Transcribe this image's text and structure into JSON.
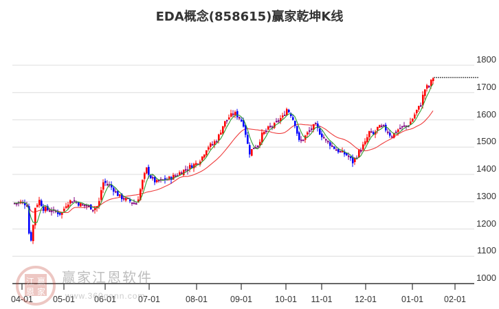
{
  "title": "EDA概念(858615)赢家乾坤K线",
  "watermark": {
    "brand": "赢家江恩软件",
    "url": "www.360gann.com",
    "seal_chars": [
      "江",
      "赢",
      "恩",
      "家"
    ]
  },
  "colors": {
    "up": "#ff0000",
    "down": "#0000ff",
    "neutral": "#800080",
    "ma_short": "#2e9b2e",
    "ma_long": "#ee3b3b",
    "grid": "#e3e3e3",
    "axis": "#333333",
    "last_price_line": "#000000"
  },
  "chart_data": {
    "type": "candlestick",
    "title": "EDA概念(858615)赢家乾坤K线",
    "xlabel": "",
    "ylabel": "",
    "ylim": [
      1000,
      1800
    ],
    "y_ticks": [
      1000,
      1100,
      1200,
      1300,
      1400,
      1500,
      1600,
      1700,
      1800
    ],
    "x_ticks": [
      "04-01",
      "05-01",
      "06-01",
      "07-01",
      "08-01",
      "09-01",
      "10-01",
      "11-01",
      "12-01",
      "01-01",
      "02-01"
    ],
    "grid": "horizontal",
    "y_axis_position": "right",
    "series": [
      {
        "name": "K线",
        "kind": "ohlc"
      },
      {
        "name": "短期均线",
        "kind": "line",
        "color": "green"
      },
      {
        "name": "长期均线",
        "kind": "line",
        "color": "red"
      }
    ],
    "last_price_line": 1755,
    "approx_ohlc_segments": [
      {
        "period": "03-25 ~ 04-08",
        "range": [
          1280,
          1320
        ],
        "trend": "flat"
      },
      {
        "period": "04-08 ~ 04-15",
        "range": [
          1115,
          1290
        ],
        "trend": "sharp drop then recovery"
      },
      {
        "period": "04-15 ~ 05-31",
        "range": [
          1245,
          1320
        ],
        "trend": "sideways"
      },
      {
        "period": "06-01 ~ 06-25",
        "range": [
          1280,
          1380
        ],
        "trend": "spike then pullback"
      },
      {
        "period": "06-25 ~ 07-31",
        "range": [
          1350,
          1440
        ],
        "trend": "rising"
      },
      {
        "period": "08-01 ~ 08-31",
        "range": [
          1400,
          1660
        ],
        "trend": "strong rally"
      },
      {
        "period": "09-01 ~ 09-15",
        "range": [
          1450,
          1600
        ],
        "trend": "sharp drop"
      },
      {
        "period": "09-15 ~ 10-10",
        "range": [
          1500,
          1660
        ],
        "trend": "recovery"
      },
      {
        "period": "10-10 ~ 11-25",
        "range": [
          1420,
          1600
        ],
        "trend": "decline"
      },
      {
        "period": "11-25 ~ 12-31",
        "range": [
          1480,
          1590
        ],
        "trend": "recovery / sideways"
      },
      {
        "period": "01-01 ~ 01-17",
        "range": [
          1560,
          1780
        ],
        "trend": "strong rally"
      }
    ]
  }
}
